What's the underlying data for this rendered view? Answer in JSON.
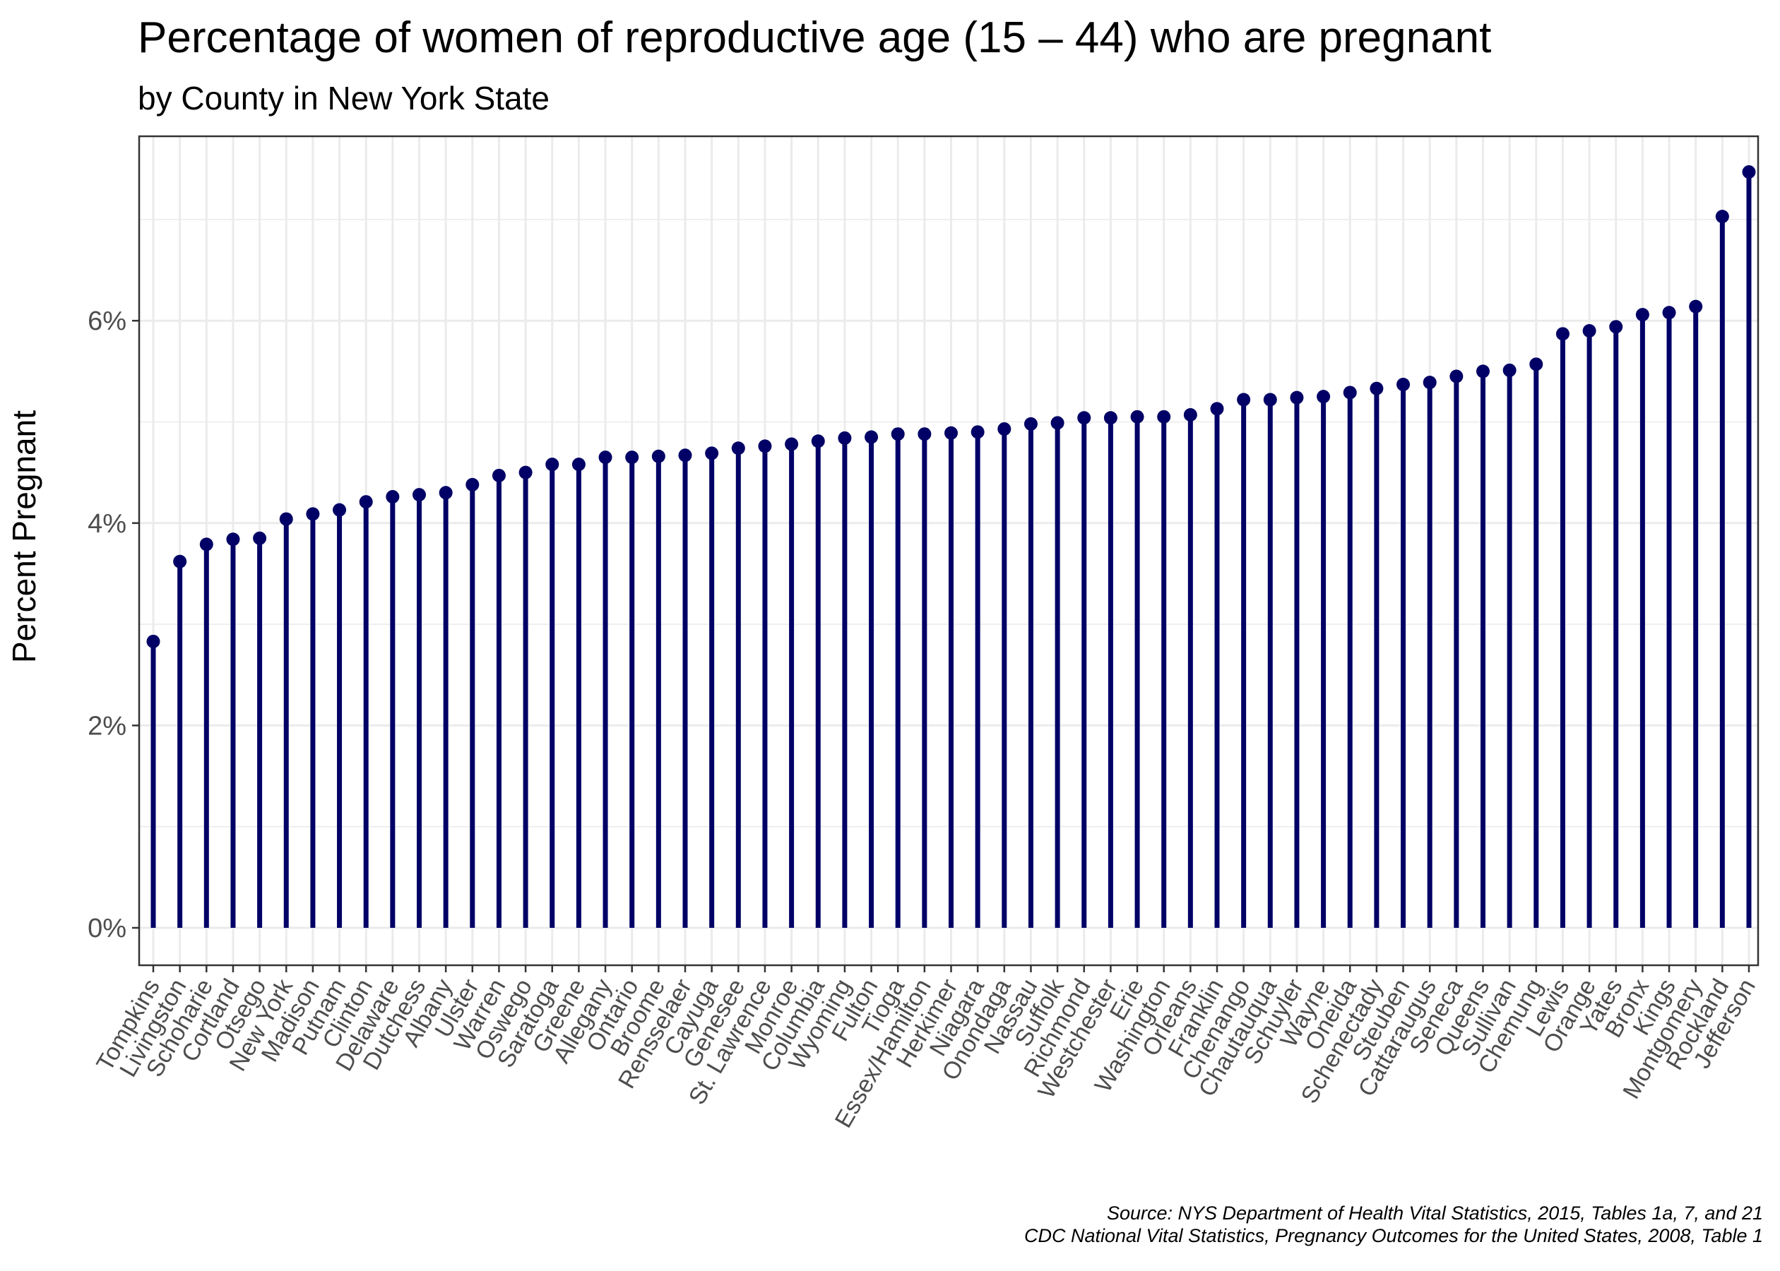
{
  "chart_data": {
    "type": "lollipop",
    "title": "Percentage of women of reproductive age (15 – 44) who are pregnant",
    "subtitle": "by County in New York State",
    "xlabel": "",
    "ylabel": "Percent Pregnant",
    "ylim": [
      0,
      7.5
    ],
    "yticks": [
      0,
      2,
      4,
      6
    ],
    "ytick_labels": [
      "0%",
      "2%",
      "4%",
      "6%"
    ],
    "grid": true,
    "caption": [
      "Source: NYS Department of Health Vital Statistics, 2015, Tables 1a, 7, and 21",
      "CDC National Vital Statistics, Pregnancy Outcomes for the United States, 2008, Table 1"
    ],
    "colors": {
      "marker": "#000066",
      "grid": "#ebebeb",
      "panel_border": "#333333"
    },
    "categories": [
      "Tompkins",
      "Livingston",
      "Schoharie",
      "Cortland",
      "Otsego",
      "New York",
      "Madison",
      "Putnam",
      "Clinton",
      "Delaware",
      "Dutchess",
      "Albany",
      "Ulster",
      "Warren",
      "Oswego",
      "Saratoga",
      "Greene",
      "Allegany",
      "Ontario",
      "Broome",
      "Rensselaer",
      "Cayuga",
      "Genesee",
      "St. Lawrence",
      "Monroe",
      "Columbia",
      "Wyoming",
      "Fulton",
      "Tioga",
      "Essex/Hamilton",
      "Herkimer",
      "Niagara",
      "Onondaga",
      "Nassau",
      "Suffolk",
      "Richmond",
      "Westchester",
      "Erie",
      "Washington",
      "Orleans",
      "Franklin",
      "Chenango",
      "Chautauqua",
      "Schuyler",
      "Wayne",
      "Oneida",
      "Schenectady",
      "Steuben",
      "Cattaraugus",
      "Seneca",
      "Queens",
      "Sullivan",
      "Chemung",
      "Lewis",
      "Orange",
      "Yates",
      "Bronx",
      "Kings",
      "Montgomery",
      "Rockland",
      "Jefferson"
    ],
    "values": [
      2.83,
      3.62,
      3.79,
      3.84,
      3.85,
      4.04,
      4.09,
      4.13,
      4.21,
      4.26,
      4.28,
      4.3,
      4.38,
      4.47,
      4.5,
      4.58,
      4.58,
      4.65,
      4.65,
      4.66,
      4.67,
      4.69,
      4.74,
      4.76,
      4.78,
      4.81,
      4.84,
      4.85,
      4.88,
      4.88,
      4.89,
      4.9,
      4.93,
      4.98,
      4.99,
      5.04,
      5.04,
      5.05,
      5.05,
      5.07,
      5.13,
      5.22,
      5.22,
      5.24,
      5.25,
      5.29,
      5.33,
      5.37,
      5.39,
      5.45,
      5.5,
      5.51,
      5.57,
      5.87,
      5.9,
      5.94,
      6.06,
      6.08,
      6.14,
      7.03,
      7.47
    ]
  }
}
